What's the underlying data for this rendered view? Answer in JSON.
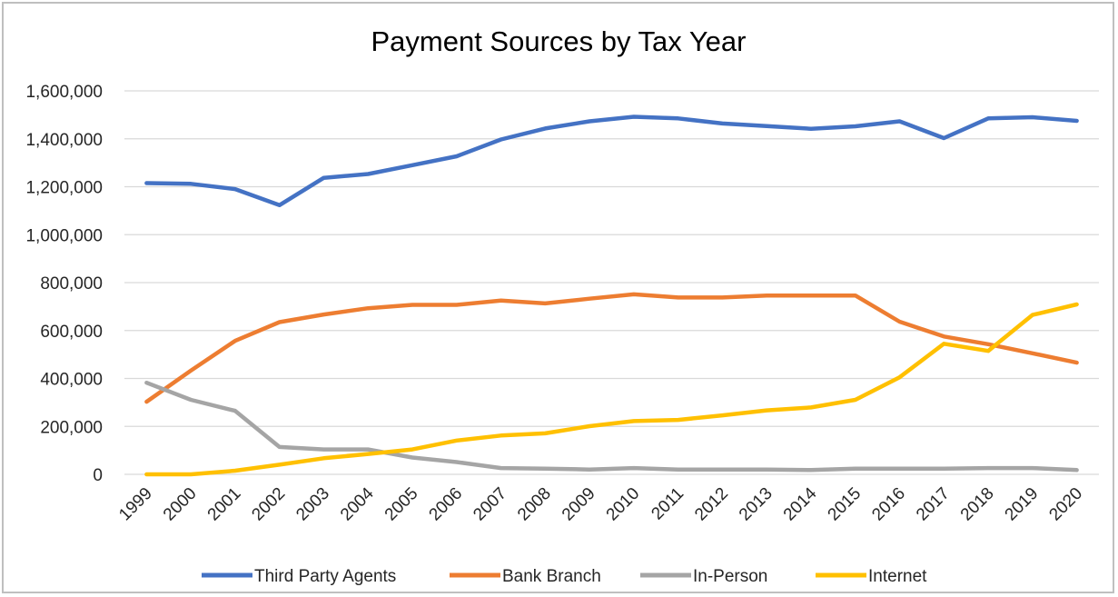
{
  "chart_data": {
    "type": "line",
    "title": "Payment Sources by Tax Year",
    "xlabel": "",
    "ylabel": "",
    "ylim": [
      0,
      1600000
    ],
    "y_ticks": [
      0,
      200000,
      400000,
      600000,
      800000,
      1000000,
      1200000,
      1400000,
      1600000
    ],
    "y_tick_labels": [
      "0",
      "200,000",
      "400,000",
      "600,000",
      "800,000",
      "1,000,000",
      "1,200,000",
      "1,400,000",
      "1,600,000"
    ],
    "grid": true,
    "legend_position": "bottom",
    "categories": [
      "1999",
      "2000",
      "2001",
      "2002",
      "2003",
      "2004",
      "2005",
      "2006",
      "2007",
      "2008",
      "2009",
      "2010",
      "2011",
      "2012",
      "2013",
      "2014",
      "2015",
      "2016",
      "2017",
      "2018",
      "2019",
      "2020"
    ],
    "series": [
      {
        "name": "Third Party Agents",
        "color": "#4472c4",
        "values": [
          1215000,
          1212000,
          1190000,
          1123000,
          1237000,
          1253000,
          1290000,
          1327000,
          1397000,
          1443000,
          1473000,
          1492000,
          1485000,
          1464000,
          1453000,
          1442000,
          1452000,
          1473000,
          1403000,
          1485000,
          1490000,
          1475000
        ]
      },
      {
        "name": "Bank Branch",
        "color": "#ed7d31",
        "values": [
          303000,
          433000,
          557000,
          635000,
          667000,
          693000,
          707000,
          707000,
          725000,
          713000,
          733000,
          751000,
          738000,
          738000,
          746000,
          746000,
          746000,
          637000,
          575000,
          543000,
          505000,
          466000
        ]
      },
      {
        "name": "In-Person",
        "color": "#a5a5a5",
        "values": [
          382000,
          311000,
          265000,
          114000,
          104000,
          104000,
          70000,
          51000,
          26000,
          24000,
          20000,
          26000,
          20000,
          20000,
          20000,
          18000,
          24000,
          24000,
          24000,
          26000,
          26000,
          18000
        ]
      },
      {
        "name": "Internet",
        "color": "#ffc000",
        "values": [
          0,
          0,
          15000,
          40000,
          67000,
          85000,
          104000,
          141000,
          162000,
          171000,
          201000,
          222000,
          227000,
          246000,
          267000,
          279000,
          311000,
          405000,
          545000,
          515000,
          665000,
          709000
        ]
      }
    ]
  }
}
